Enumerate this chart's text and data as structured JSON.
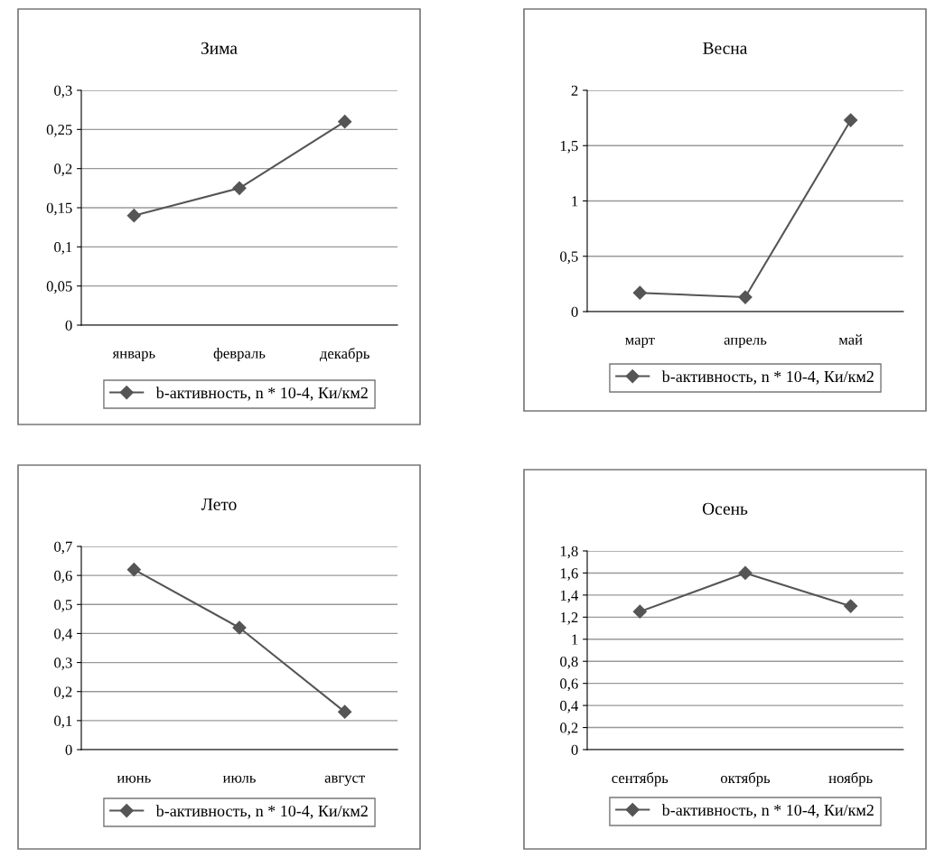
{
  "chart_data": [
    {
      "type": "line",
      "title": "Зима",
      "categories": [
        "январь",
        "февраль",
        "декабрь"
      ],
      "series": [
        {
          "name": "b-активность, n * 10-4, Ки/км2",
          "color": "#555555",
          "values": [
            0.14,
            0.175,
            0.26
          ]
        }
      ],
      "ylim": [
        0,
        0.3
      ],
      "yticks": [
        {
          "value": 0,
          "label": "0"
        },
        {
          "value": 0.05,
          "label": "0,05"
        },
        {
          "value": 0.1,
          "label": "0,1"
        },
        {
          "value": 0.15,
          "label": "0,15"
        },
        {
          "value": 0.2,
          "label": "0,2"
        },
        {
          "value": 0.25,
          "label": "0,25"
        },
        {
          "value": 0.3,
          "label": "0,3"
        }
      ],
      "grid": "y",
      "legend": "bottom",
      "marker": "diamond",
      "line_style": "solid"
    },
    {
      "type": "line",
      "title": "Весна",
      "categories": [
        "март",
        "апрель",
        "май"
      ],
      "series": [
        {
          "name": "b-активность, n * 10-4, Ки/км2",
          "color": "#555555",
          "values": [
            0.17,
            0.13,
            1.73
          ]
        }
      ],
      "ylim": [
        0,
        2
      ],
      "yticks": [
        {
          "value": 0,
          "label": "0"
        },
        {
          "value": 0.5,
          "label": "0,5"
        },
        {
          "value": 1,
          "label": "1"
        },
        {
          "value": 1.5,
          "label": "1,5"
        },
        {
          "value": 2,
          "label": "2"
        }
      ],
      "grid": "y",
      "legend": "bottom",
      "marker": "diamond",
      "line_style": "solid"
    },
    {
      "type": "line",
      "title": "Лето",
      "categories": [
        "июнь",
        "июль",
        "август"
      ],
      "series": [
        {
          "name": "b-активность, n * 10-4, Ки/км2",
          "color": "#555555",
          "values": [
            0.62,
            0.42,
            0.13
          ]
        }
      ],
      "ylim": [
        0,
        0.7
      ],
      "yticks": [
        {
          "value": 0,
          "label": "0"
        },
        {
          "value": 0.1,
          "label": "0,1"
        },
        {
          "value": 0.2,
          "label": "0,2"
        },
        {
          "value": 0.3,
          "label": "0,3"
        },
        {
          "value": 0.4,
          "label": "0,4"
        },
        {
          "value": 0.5,
          "label": "0,5"
        },
        {
          "value": 0.6,
          "label": "0,6"
        },
        {
          "value": 0.7,
          "label": "0,7"
        }
      ],
      "grid": "y",
      "legend": "bottom",
      "marker": "diamond",
      "line_style": "solid"
    },
    {
      "type": "line",
      "title": "Осень",
      "categories": [
        "сентябрь",
        "октябрь",
        "ноябрь"
      ],
      "series": [
        {
          "name": "b-активность, n * 10-4, Ки/км2",
          "color": "#555555",
          "values": [
            1.25,
            1.6,
            1.3
          ]
        }
      ],
      "ylim": [
        0,
        1.8
      ],
      "yticks": [
        {
          "value": 0,
          "label": "0"
        },
        {
          "value": 0.2,
          "label": "0,2"
        },
        {
          "value": 0.4,
          "label": "0,4"
        },
        {
          "value": 0.6,
          "label": "0,6"
        },
        {
          "value": 0.8,
          "label": "0,8"
        },
        {
          "value": 1,
          "label": "1"
        },
        {
          "value": 1.2,
          "label": "1,2"
        },
        {
          "value": 1.4,
          "label": "1,4"
        },
        {
          "value": 1.6,
          "label": "1,6"
        },
        {
          "value": 1.8,
          "label": "1,8"
        }
      ],
      "grid": "y",
      "legend": "bottom",
      "marker": "diamond",
      "line_style": "solid"
    }
  ]
}
